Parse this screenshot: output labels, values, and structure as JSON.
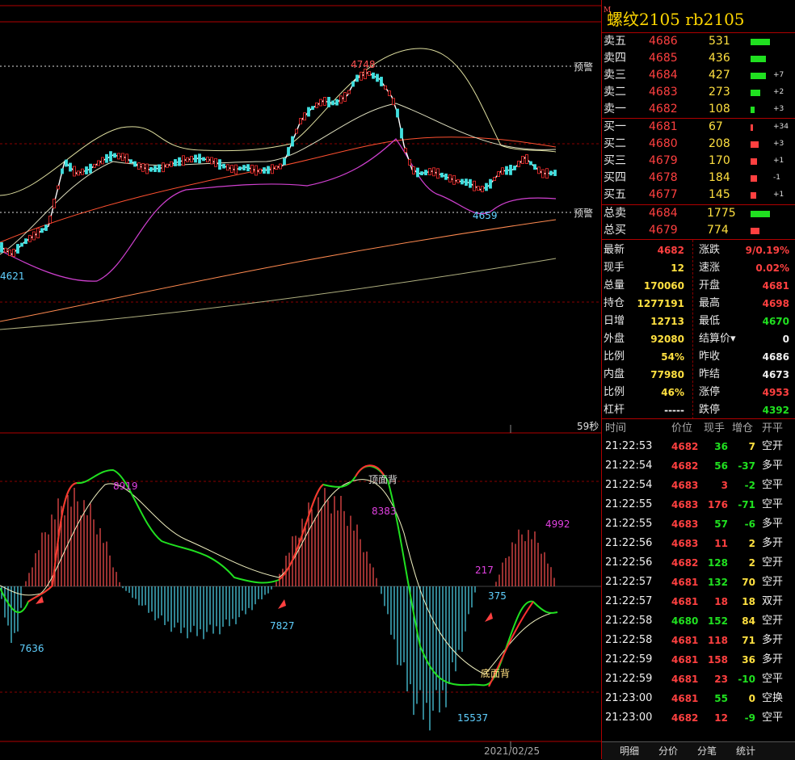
{
  "contract": {
    "name": "螺纹2105",
    "code": "rb2105",
    "marker": "M"
  },
  "asks": [
    {
      "label": "卖五",
      "price": "4686",
      "vol": "531",
      "chg": "",
      "bar": 1.0
    },
    {
      "label": "卖四",
      "price": "4685",
      "vol": "436",
      "chg": "",
      "bar": 0.8
    },
    {
      "label": "卖三",
      "price": "4684",
      "vol": "427",
      "chg": "+7",
      "bar": 0.8
    },
    {
      "label": "卖二",
      "price": "4683",
      "vol": "273",
      "chg": "+2",
      "bar": 0.5
    },
    {
      "label": "卖一",
      "price": "4682",
      "vol": "108",
      "chg": "+3",
      "bar": 0.2
    }
  ],
  "bids": [
    {
      "label": "买一",
      "price": "4681",
      "vol": "67",
      "chg": "+34",
      "bar": 0.12
    },
    {
      "label": "买二",
      "price": "4680",
      "vol": "208",
      "chg": "+3",
      "bar": 0.4
    },
    {
      "label": "买三",
      "price": "4679",
      "vol": "170",
      "chg": "+1",
      "bar": 0.35
    },
    {
      "label": "买四",
      "price": "4678",
      "vol": "184",
      "chg": "-1",
      "bar": 0.35
    },
    {
      "label": "买五",
      "price": "4677",
      "vol": "145",
      "chg": "+1",
      "bar": 0.3
    }
  ],
  "totals": [
    {
      "label": "总卖",
      "price": "4684",
      "vol": "1775",
      "bar": 1.0
    },
    {
      "label": "总买",
      "price": "4679",
      "vol": "774",
      "bar": 0.45
    }
  ],
  "stats_left": [
    {
      "label": "最新",
      "value": "4682",
      "color": "red"
    },
    {
      "label": "现手",
      "value": "12",
      "color": "yel"
    },
    {
      "label": "总量",
      "value": "170060",
      "color": "yel"
    },
    {
      "label": "持仓",
      "value": "1277191",
      "color": "yel"
    },
    {
      "label": "日增",
      "value": "12713",
      "color": "yel"
    },
    {
      "label": "外盘",
      "value": "92080",
      "color": "yel"
    },
    {
      "label": "比例",
      "value": "54%",
      "color": "yel"
    },
    {
      "label": "内盘",
      "value": "77980",
      "color": "yel"
    },
    {
      "label": "比例",
      "value": "46%",
      "color": "yel"
    },
    {
      "label": "杠杆",
      "value": "-----",
      "color": "wht"
    }
  ],
  "stats_right": [
    {
      "label": "涨跌",
      "value": "9/0.19%",
      "color": "red"
    },
    {
      "label": "速涨",
      "value": "0.02%",
      "color": "red"
    },
    {
      "label": "开盘",
      "value": "4681",
      "color": "red"
    },
    {
      "label": "最高",
      "value": "4698",
      "color": "red"
    },
    {
      "label": "最低",
      "value": "4670",
      "color": "grn"
    },
    {
      "label": "结算价▾",
      "value": "0",
      "color": "wht"
    },
    {
      "label": "昨收",
      "value": "4686",
      "color": "wht"
    },
    {
      "label": "昨结",
      "value": "4673",
      "color": "wht"
    },
    {
      "label": "涨停",
      "value": "4953",
      "color": "red"
    },
    {
      "label": "跌停",
      "value": "4392",
      "color": "grn"
    }
  ],
  "trades_header": {
    "time": "时间",
    "price": "价位",
    "hand": "现手",
    "oi": "增仓",
    "type": "开平"
  },
  "trades": [
    {
      "time": "21:22:53",
      "price": "4682",
      "hand": "36",
      "oi": "7",
      "type": "空开",
      "hc": "grn"
    },
    {
      "time": "21:22:54",
      "price": "4682",
      "hand": "56",
      "oi": "-37",
      "type": "多平",
      "hc": "grn"
    },
    {
      "time": "21:22:54",
      "price": "4683",
      "hand": "3",
      "oi": "-2",
      "type": "空平",
      "hc": "red"
    },
    {
      "time": "21:22:55",
      "price": "4683",
      "hand": "176",
      "oi": "-71",
      "type": "空平",
      "hc": "red"
    },
    {
      "time": "21:22:55",
      "price": "4683",
      "hand": "57",
      "oi": "-6",
      "type": "多平",
      "hc": "grn"
    },
    {
      "time": "21:22:56",
      "price": "4683",
      "hand": "11",
      "oi": "2",
      "type": "多开",
      "hc": "red"
    },
    {
      "time": "21:22:56",
      "price": "4682",
      "hand": "128",
      "oi": "2",
      "type": "空开",
      "hc": "grn"
    },
    {
      "time": "21:22:57",
      "price": "4681",
      "hand": "132",
      "oi": "70",
      "type": "空开",
      "hc": "grn"
    },
    {
      "time": "21:22:57",
      "price": "4681",
      "hand": "18",
      "oi": "18",
      "type": "双开",
      "hc": "red"
    },
    {
      "time": "21:22:58",
      "price": "4680",
      "hand": "152",
      "oi": "84",
      "type": "空开",
      "hc": "grn"
    },
    {
      "time": "21:22:58",
      "price": "4681",
      "hand": "118",
      "oi": "71",
      "type": "多开",
      "hc": "red"
    },
    {
      "time": "21:22:59",
      "price": "4681",
      "hand": "158",
      "oi": "36",
      "type": "多开",
      "hc": "red"
    },
    {
      "time": "21:22:59",
      "price": "4681",
      "hand": "23",
      "oi": "-10",
      "type": "空平",
      "hc": "red"
    },
    {
      "time": "21:23:00",
      "price": "4681",
      "hand": "55",
      "oi": "0",
      "type": "空换",
      "hc": "grn"
    },
    {
      "time": "21:23:00",
      "price": "4682",
      "hand": "12",
      "oi": "-9",
      "type": "空平",
      "hc": "red"
    }
  ],
  "tabs": [
    "明细",
    "分价",
    "分笔",
    "统计"
  ],
  "chart": {
    "high_label": "4748",
    "low_label": "4659",
    "left_low_label": "4621",
    "alert_label": "预警",
    "timer": "59秒",
    "date": "2021/02/25",
    "annotations": {
      "top_div": "顶面背",
      "bottom_div": "底面背",
      "v8919": "8919",
      "v8383": "8383",
      "v4992": "4992",
      "v217": "217",
      "v375": "375",
      "v7636": "7636",
      "v7827": "7827",
      "v15537": "15537"
    }
  },
  "colors": {
    "up": "#ff4040",
    "down": "#20e020",
    "grid": "#b00000",
    "accent": "#ffd700"
  }
}
